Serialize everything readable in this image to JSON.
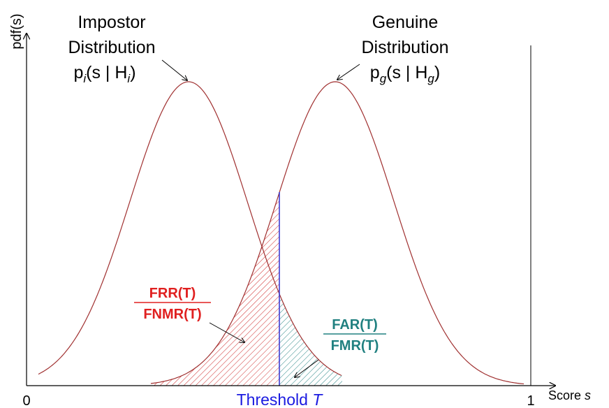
{
  "axes": {
    "y_label": "pdf(s)",
    "x_label": "Score",
    "x_label_var": "s",
    "x_start": "0",
    "x_end": "1"
  },
  "impostor": {
    "line1": "Impostor",
    "line2": "Distribution",
    "parts": [
      "p",
      "i",
      "(s | H",
      "i",
      ")"
    ]
  },
  "genuine": {
    "line1": "Genuine",
    "line2": "Distribution",
    "parts": [
      "p",
      "g",
      "(s | H",
      "g",
      ")"
    ]
  },
  "threshold": {
    "label": "Threshold",
    "var": "T"
  },
  "frr": {
    "numerator": "FRR(T)",
    "denominator": "FNMR(T)"
  },
  "far": {
    "numerator": "FAR(T)",
    "denominator": "FMR(T)"
  }
}
